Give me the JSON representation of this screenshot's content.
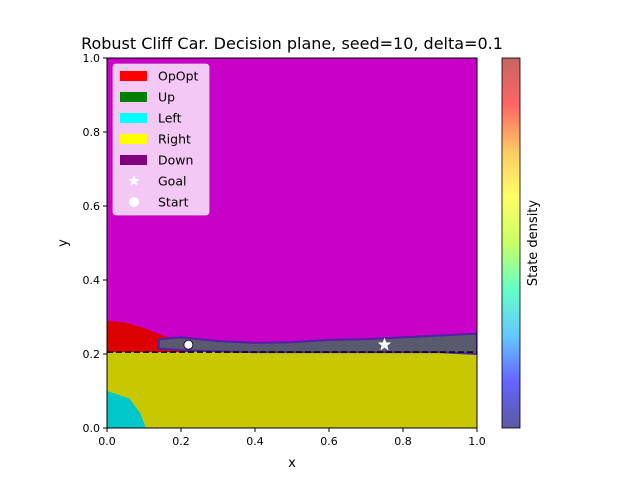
{
  "chart_data": {
    "type": "heatmap",
    "title": "Robust Cliff Car. Decision plane, seed=10, delta=0.1",
    "xlabel": "x",
    "ylabel": "y",
    "xlim": [
      0.0,
      1.0
    ],
    "ylim": [
      0.0,
      1.0
    ],
    "xticks": [
      "0.0",
      "0.2",
      "0.4",
      "0.6",
      "0.8",
      "1.0"
    ],
    "yticks": [
      "0.0",
      "0.2",
      "0.4",
      "0.6",
      "0.8",
      "1.0"
    ],
    "grid": false,
    "legend_position": "top-left",
    "legend": [
      {
        "label": "OpOpt",
        "color": "#ff0000",
        "kind": "patch"
      },
      {
        "label": "Up",
        "color": "#008000",
        "kind": "patch"
      },
      {
        "label": "Left",
        "color": "#00ffff",
        "kind": "patch"
      },
      {
        "label": "Right",
        "color": "#ffff00",
        "kind": "patch"
      },
      {
        "label": "Down",
        "color": "#800080",
        "kind": "patch"
      },
      {
        "label": "Goal",
        "color": "#ffffff",
        "kind": "star"
      },
      {
        "label": "Start",
        "color": "#ffffff",
        "kind": "circle"
      }
    ],
    "region_colors": {
      "down": "#c800c8",
      "right": "#c8c800",
      "left": "#00c8c8",
      "opopt": "#dc0000",
      "trajectory": "#5a5a6e",
      "trajectory_edge": "#5020a8"
    },
    "regions": {
      "boundary_down_right": [
        [
          0.0,
          0.205
        ],
        [
          0.2,
          0.205
        ],
        [
          0.4,
          0.212
        ],
        [
          0.6,
          0.22
        ],
        [
          0.8,
          0.232
        ],
        [
          0.9,
          0.24
        ],
        [
          1.0,
          0.245
        ]
      ],
      "opopt_top": [
        [
          0.0,
          0.29
        ],
        [
          0.05,
          0.285
        ],
        [
          0.1,
          0.27
        ],
        [
          0.15,
          0.25
        ],
        [
          0.2,
          0.235
        ],
        [
          0.22,
          0.225
        ]
      ],
      "left_arc": [
        [
          0.0,
          0.1
        ],
        [
          0.06,
          0.08
        ],
        [
          0.09,
          0.04
        ],
        [
          0.105,
          0.0
        ]
      ],
      "trajectory_upper": [
        [
          0.14,
          0.24
        ],
        [
          0.2,
          0.245
        ],
        [
          0.3,
          0.235
        ],
        [
          0.4,
          0.23
        ],
        [
          0.5,
          0.232
        ],
        [
          0.6,
          0.238
        ],
        [
          0.7,
          0.24
        ],
        [
          0.8,
          0.245
        ],
        [
          0.9,
          0.25
        ],
        [
          1.0,
          0.255
        ]
      ],
      "trajectory_lower": [
        [
          1.0,
          0.2
        ],
        [
          0.9,
          0.205
        ],
        [
          0.8,
          0.205
        ],
        [
          0.7,
          0.205
        ],
        [
          0.6,
          0.205
        ],
        [
          0.5,
          0.205
        ],
        [
          0.4,
          0.205
        ],
        [
          0.3,
          0.207
        ],
        [
          0.2,
          0.21
        ],
        [
          0.14,
          0.215
        ]
      ]
    },
    "cliff_line_y": 0.205,
    "goal": {
      "x": 0.75,
      "y": 0.225
    },
    "start": {
      "x": 0.22,
      "y": 0.225
    },
    "colorbar": {
      "label": "State density",
      "colors": [
        "#5a5aa0",
        "#6464ff",
        "#64c8ff",
        "#64ffc8",
        "#c8ff64",
        "#ffff64",
        "#ffc864",
        "#ff6464",
        "#c86464"
      ]
    }
  }
}
